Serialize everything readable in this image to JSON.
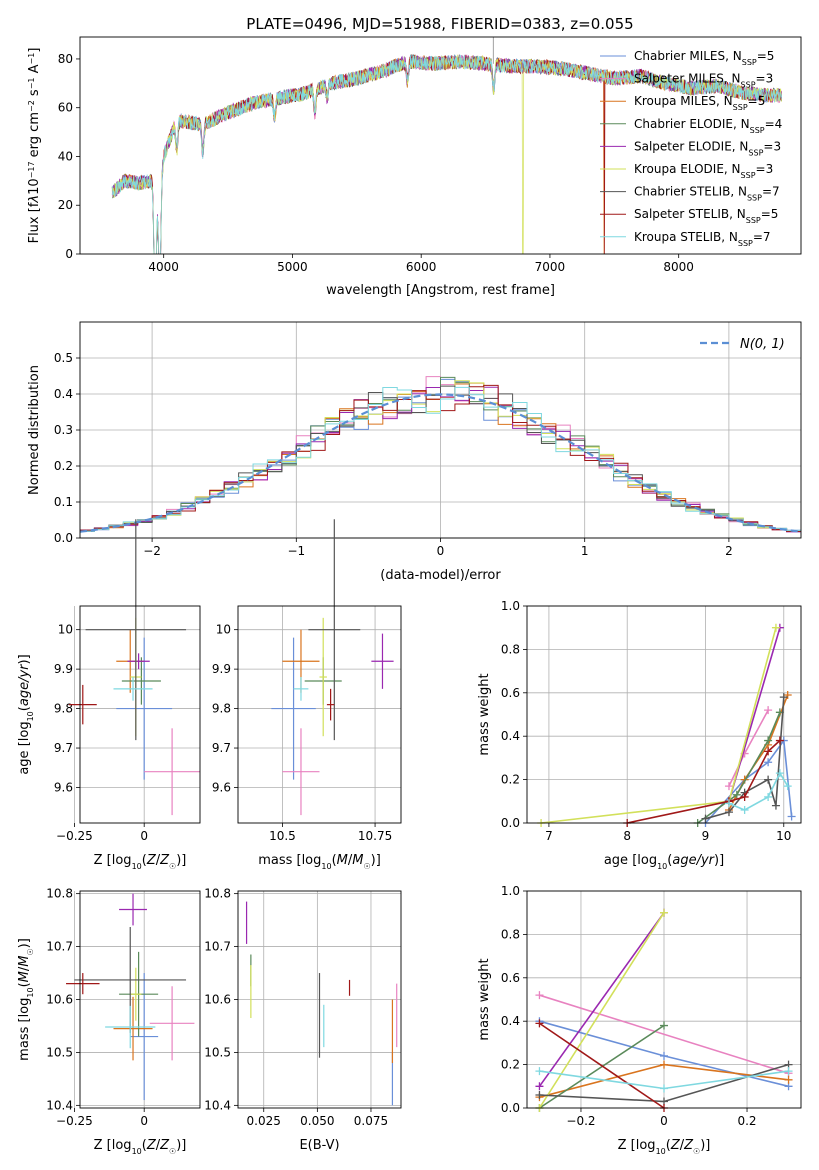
{
  "figure": {
    "title": "PLATE=0496, MJD=51988, FIBERID=0383, z=0.055"
  },
  "chart_data": [
    {
      "id": "spectrum",
      "type": "line",
      "xlabel": "wavelength [Angstrom, rest frame]",
      "ylabel": "Flux [fλ10−17 erg cm−2 s−1 A−1]",
      "xlim": [
        3350,
        8950
      ],
      "ylim": [
        0,
        89
      ],
      "xticks": [
        4000,
        5000,
        6000,
        7000,
        8000
      ],
      "yticks": [
        0,
        20,
        40,
        60,
        80
      ],
      "grid": false,
      "legend_position": "top-right",
      "x_range": [
        3600,
        8800
      ],
      "envelope": [
        [
          3600,
          25
        ],
        [
          3700,
          30
        ],
        [
          3800,
          29
        ],
        [
          3900,
          30
        ],
        [
          4000,
          40
        ],
        [
          4100,
          55
        ],
        [
          4300,
          53
        ],
        [
          4500,
          58
        ],
        [
          4700,
          62
        ],
        [
          4900,
          64
        ],
        [
          5100,
          66
        ],
        [
          5300,
          70
        ],
        [
          5500,
          72
        ],
        [
          5700,
          75
        ],
        [
          5900,
          79
        ],
        [
          6100,
          78
        ],
        [
          6300,
          79
        ],
        [
          6500,
          78
        ],
        [
          6700,
          77
        ],
        [
          6900,
          77
        ],
        [
          7100,
          76
        ],
        [
          7300,
          74
        ],
        [
          7500,
          72
        ],
        [
          7700,
          73
        ],
        [
          7900,
          70
        ],
        [
          8100,
          68
        ],
        [
          8300,
          69
        ],
        [
          8500,
          66
        ],
        [
          8700,
          65
        ],
        [
          8800,
          65
        ]
      ],
      "absorption_lines": [
        [
          3934,
          50
        ],
        [
          3969,
          48
        ],
        [
          4102,
          12
        ],
        [
          4304,
          12
        ],
        [
          4861,
          8
        ],
        [
          5175,
          10
        ],
        [
          5270,
          5
        ],
        [
          5893,
          8
        ],
        [
          6563,
          10
        ]
      ],
      "model_dropouts": [
        {
          "series": "Kroupa ELODIE",
          "x": 3925
        },
        {
          "series": "Kroupa ELODIE",
          "x": 6790
        },
        {
          "series": "Salpeter STELIB",
          "x": 7425
        },
        {
          "series": "Kroupa MILES",
          "x": 7420
        }
      ],
      "series": [
        {
          "name": "Chabrier MILES",
          "nssp": "5",
          "color": "#6a8fd8"
        },
        {
          "name": "Salpeter MILES",
          "nssp": "3",
          "color": "#e882c0"
        },
        {
          "name": "Kroupa MILES",
          "nssp": "5",
          "color": "#d9741e"
        },
        {
          "name": "Chabrier ELODIE",
          "nssp": "4",
          "color": "#5a8a5a"
        },
        {
          "name": "Salpeter ELODIE",
          "nssp": "3",
          "color": "#9a28b0"
        },
        {
          "name": "Kroupa ELODIE",
          "nssp": "3",
          "color": "#d2e05a"
        },
        {
          "name": "Chabrier STELIB",
          "nssp": "7",
          "color": "#555555"
        },
        {
          "name": "Salpeter STELIB",
          "nssp": "5",
          "color": "#a01818"
        },
        {
          "name": "Kroupa STELIB",
          "nssp": "7",
          "color": "#7fd8e0"
        }
      ]
    },
    {
      "id": "residuals",
      "type": "histogram",
      "xlabel": "(data-model)/error",
      "ylabel": "Normed distribution",
      "xlim": [
        -2.5,
        2.5
      ],
      "ylim": [
        0,
        0.6
      ],
      "xticks": [
        -2,
        -1,
        0,
        1,
        2
      ],
      "yticks": [
        0.0,
        0.1,
        0.2,
        0.3,
        0.4,
        0.5
      ],
      "grid": true,
      "legend_position": "top-right",
      "legend_label": "N(0, 1)",
      "bin_width": 0.1,
      "reference_curve": {
        "type": "gaussian",
        "mean": 0,
        "sigma": 1,
        "color": "#5b8fd4"
      }
    },
    {
      "id": "age_vs_Z",
      "type": "errorbar",
      "xlabel": "Z [log10(Z/Z☉)]",
      "ylabel": "age [log10(age/yr)]",
      "xlim": [
        -0.23,
        0.2
      ],
      "ylim": [
        9.51,
        10.06
      ],
      "xticks": [
        -0.25,
        0.0
      ],
      "yticks": [
        9.6,
        9.7,
        9.8,
        9.9,
        10.0
      ],
      "grid": true,
      "points": [
        {
          "series": "Chabrier MILES",
          "x": 0.0,
          "y": 9.8,
          "xerr": 0.1,
          "yerr": 0.18
        },
        {
          "series": "Salpeter MILES",
          "x": 0.1,
          "y": 9.64,
          "xerr": 0.1,
          "yerr": 0.11
        },
        {
          "series": "Kroupa MILES",
          "x": -0.05,
          "y": 9.92,
          "xerr": 0.05,
          "yerr": 0.08
        },
        {
          "series": "Chabrier ELODIE",
          "x": -0.01,
          "y": 9.87,
          "xerr": 0.07,
          "yerr": 0.06
        },
        {
          "series": "Salpeter ELODIE",
          "x": -0.02,
          "y": 9.92,
          "xerr": 0.04,
          "yerr": 0.02
        },
        {
          "series": "Kroupa ELODIE",
          "x": -0.03,
          "y": 9.88,
          "xerr": 0.02,
          "yerr": 0.15
        },
        {
          "series": "Chabrier STELIB",
          "x": -0.03,
          "y": 10.0,
          "xerr": 0.18,
          "yerr": 0.28
        },
        {
          "series": "Salpeter STELIB",
          "x": -0.22,
          "y": 9.81,
          "xerr": 0.05,
          "yerr": 0.05
        },
        {
          "series": "Kroupa STELIB",
          "x": -0.04,
          "y": 9.85,
          "xerr": 0.07,
          "yerr": 0.03
        }
      ]
    },
    {
      "id": "age_vs_mass",
      "type": "errorbar",
      "xlabel": "mass [log10(M/M☉)]",
      "ylabel": "",
      "xlim": [
        10.38,
        10.82
      ],
      "ylim": [
        9.51,
        10.06
      ],
      "xticks": [
        10.5,
        10.75
      ],
      "yticks": [
        9.6,
        9.7,
        9.8,
        9.9,
        10.0
      ],
      "grid": true,
      "points": [
        {
          "series": "Chabrier MILES",
          "x": 10.53,
          "y": 9.8,
          "xerr": 0.06,
          "yerr": 0.18
        },
        {
          "series": "Salpeter MILES",
          "x": 10.55,
          "y": 9.64,
          "xerr": 0.05,
          "yerr": 0.11
        },
        {
          "series": "Kroupa MILES",
          "x": 10.55,
          "y": 9.92,
          "xerr": 0.05,
          "yerr": 0.08
        },
        {
          "series": "Chabrier ELODIE",
          "x": 10.61,
          "y": 9.87,
          "xerr": 0.05,
          "yerr": 0.06
        },
        {
          "series": "Salpeter ELODIE",
          "x": 10.77,
          "y": 9.92,
          "xerr": 0.03,
          "yerr": 0.07
        },
        {
          "series": "Kroupa ELODIE",
          "x": 10.61,
          "y": 9.88,
          "xerr": 0.01,
          "yerr": 0.15
        },
        {
          "series": "Chabrier STELIB",
          "x": 10.64,
          "y": 10.0,
          "xerr": 0.07,
          "yerr": 0.28
        },
        {
          "series": "Salpeter STELIB",
          "x": 10.63,
          "y": 9.81,
          "xerr": 0.01,
          "yerr": 0.04
        },
        {
          "series": "Kroupa STELIB",
          "x": 10.55,
          "y": 9.85,
          "xerr": 0.02,
          "yerr": 0.03
        }
      ]
    },
    {
      "id": "weight_vs_age",
      "type": "line",
      "xlabel": "age [log10(age/yr)]",
      "ylabel": "mass weight",
      "xlim": [
        6.72,
        10.22
      ],
      "ylim": [
        0,
        1.0
      ],
      "xticks": [
        7,
        8,
        9,
        10
      ],
      "yticks": [
        0.0,
        0.2,
        0.4,
        0.6,
        0.8,
        1.0
      ],
      "grid": true,
      "series": [
        {
          "name": "Chabrier MILES",
          "x": [
            9.0,
            9.5,
            9.8,
            10.0,
            10.1
          ],
          "y": [
            0.0,
            0.2,
            0.28,
            0.38,
            0.03
          ]
        },
        {
          "name": "Salpeter MILES",
          "x": [
            9.3,
            9.5,
            9.8
          ],
          "y": [
            0.17,
            0.32,
            0.52
          ]
        },
        {
          "name": "Kroupa MILES",
          "x": [
            9.3,
            9.5,
            9.8,
            10.05
          ],
          "y": [
            0.06,
            0.2,
            0.36,
            0.59
          ]
        },
        {
          "name": "Chabrier ELODIE",
          "x": [
            8.9,
            9.4,
            9.8,
            9.95
          ],
          "y": [
            0.0,
            0.13,
            0.38,
            0.51
          ]
        },
        {
          "name": "Salpeter ELODIE",
          "x": [
            9.3,
            9.95
          ],
          "y": [
            0.1,
            0.9
          ]
        },
        {
          "name": "Kroupa ELODIE",
          "x": [
            6.9,
            9.3,
            9.9
          ],
          "y": [
            0.0,
            0.1,
            0.9
          ]
        },
        {
          "name": "Chabrier STELIB",
          "x": [
            9.0,
            9.3,
            9.5,
            9.8,
            9.9,
            10.0
          ],
          "y": [
            0.02,
            0.05,
            0.14,
            0.2,
            0.08,
            0.58
          ]
        },
        {
          "name": "Salpeter STELIB",
          "x": [
            8.0,
            9.3,
            9.5,
            9.8,
            9.95
          ],
          "y": [
            0.0,
            0.1,
            0.12,
            0.33,
            0.38
          ]
        },
        {
          "name": "Kroupa STELIB",
          "x": [
            9.3,
            9.5,
            9.8,
            9.95,
            10.05
          ],
          "y": [
            0.09,
            0.06,
            0.12,
            0.23,
            0.17
          ]
        }
      ]
    },
    {
      "id": "mass_vs_Z",
      "type": "errorbar",
      "xlabel": "Z [log10(Z/Z☉)]",
      "ylabel": "mass [log10(M/M☉)]",
      "xlim": [
        -0.23,
        0.2
      ],
      "ylim": [
        10.395,
        10.805
      ],
      "xticks": [
        -0.25,
        0.0
      ],
      "yticks": [
        10.4,
        10.5,
        10.6,
        10.7,
        10.8
      ],
      "grid": true,
      "points": [
        {
          "series": "Chabrier MILES",
          "x": 0.0,
          "y": 10.53,
          "xerr": 0.05,
          "yerr": 0.12
        },
        {
          "series": "Salpeter MILES",
          "x": 0.1,
          "y": 10.555,
          "xerr": 0.08,
          "yerr": 0.07
        },
        {
          "series": "Kroupa MILES",
          "x": -0.04,
          "y": 10.545,
          "xerr": 0.07,
          "yerr": 0.06
        },
        {
          "series": "Chabrier ELODIE",
          "x": -0.02,
          "y": 10.61,
          "xerr": 0.07,
          "yerr": 0.08
        },
        {
          "series": "Salpeter ELODIE",
          "x": -0.04,
          "y": 10.77,
          "xerr": 0.05,
          "yerr": 0.03
        },
        {
          "series": "Kroupa ELODIE",
          "x": -0.03,
          "y": 10.61,
          "xerr": 0.02,
          "yerr": 0.05
        },
        {
          "series": "Chabrier STELIB",
          "x": -0.05,
          "y": 10.637,
          "xerr": 0.2,
          "yerr": 0.1
        },
        {
          "series": "Salpeter STELIB",
          "x": -0.22,
          "y": 10.63,
          "xerr": 0.06,
          "yerr": 0.02
        },
        {
          "series": "Kroupa STELIB",
          "x": -0.05,
          "y": 10.548,
          "xerr": 0.09,
          "yerr": 0.04
        }
      ]
    },
    {
      "id": "mass_vs_ebv",
      "type": "errorbar",
      "xlabel": "E(B-V)",
      "ylabel": "",
      "xlim": [
        0.013,
        0.089
      ],
      "ylim": [
        10.395,
        10.805
      ],
      "xticks": [
        0.025,
        0.05,
        0.075
      ],
      "xticklabels": [
        "0.025",
        "0.050",
        "0.075"
      ],
      "yticks": [
        10.4,
        10.5,
        10.6,
        10.7,
        10.8
      ],
      "grid": true,
      "points": [
        {
          "series": "Chabrier MILES",
          "x": 0.085,
          "y": 10.45,
          "xerr": 0,
          "yerr": 0.05
        },
        {
          "series": "Salpeter MILES",
          "x": 0.087,
          "y": 10.57,
          "xerr": 0,
          "yerr": 0.06
        },
        {
          "series": "Kroupa MILES",
          "x": 0.085,
          "y": 10.54,
          "xerr": 0,
          "yerr": 0.06
        },
        {
          "series": "Chabrier ELODIE",
          "x": 0.019,
          "y": 10.655,
          "xerr": 0,
          "yerr": 0.03
        },
        {
          "series": "Salpeter ELODIE",
          "x": 0.017,
          "y": 10.745,
          "xerr": 0,
          "yerr": 0.04
        },
        {
          "series": "Kroupa ELODIE",
          "x": 0.019,
          "y": 10.615,
          "xerr": 0,
          "yerr": 0.05
        },
        {
          "series": "Chabrier STELIB",
          "x": 0.051,
          "y": 10.57,
          "xerr": 0,
          "yerr": 0.08
        },
        {
          "series": "Salpeter STELIB",
          "x": 0.065,
          "y": 10.622,
          "xerr": 0,
          "yerr": 0.015
        },
        {
          "series": "Kroupa STELIB",
          "x": 0.053,
          "y": 10.55,
          "xerr": 0,
          "yerr": 0.04
        }
      ]
    },
    {
      "id": "weight_vs_Z",
      "type": "line",
      "xlabel": "Z [log10(Z/Z☉)]",
      "ylabel": "mass weight",
      "xlim": [
        -0.33,
        0.33
      ],
      "ylim": [
        0,
        1.0
      ],
      "xticks": [
        -0.2,
        0.0,
        0.2
      ],
      "yticks": [
        0.0,
        0.2,
        0.4,
        0.6,
        0.8,
        1.0
      ],
      "grid": true,
      "series": [
        {
          "name": "Chabrier MILES",
          "x": [
            -0.3,
            0.0,
            0.3
          ],
          "y": [
            0.4,
            0.24,
            0.1
          ]
        },
        {
          "name": "Salpeter MILES",
          "x": [
            -0.3,
            0.3
          ],
          "y": [
            0.52,
            0.16
          ]
        },
        {
          "name": "Kroupa MILES",
          "x": [
            -0.3,
            0.0,
            0.3
          ],
          "y": [
            0.05,
            0.2,
            0.13
          ]
        },
        {
          "name": "Chabrier ELODIE",
          "x": [
            -0.3,
            0.0
          ],
          "y": [
            0.0,
            0.38
          ]
        },
        {
          "name": "Salpeter ELODIE",
          "x": [
            -0.3,
            0.0
          ],
          "y": [
            0.1,
            0.9
          ]
        },
        {
          "name": "Kroupa ELODIE",
          "x": [
            -0.3,
            0.0
          ],
          "y": [
            0.0,
            0.9
          ]
        },
        {
          "name": "Chabrier STELIB",
          "x": [
            -0.3,
            0.0,
            0.3
          ],
          "y": [
            0.06,
            0.03,
            0.2
          ]
        },
        {
          "name": "Salpeter STELIB",
          "x": [
            -0.3,
            0.0
          ],
          "y": [
            0.39,
            0.0
          ]
        },
        {
          "name": "Kroupa STELIB",
          "x": [
            -0.3,
            0.0,
            0.3
          ],
          "y": [
            0.17,
            0.09,
            0.17
          ]
        }
      ]
    }
  ]
}
